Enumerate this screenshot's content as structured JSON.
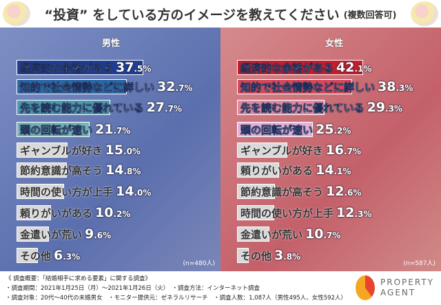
{
  "title": {
    "main": "“投資” をしている方のイメージを教えてください",
    "sub": "(複数回答可)"
  },
  "chart_data": [
    {
      "type": "bar",
      "title": "男性",
      "note": "(n=480人)",
      "categories": [
        "経済的な余裕がある",
        "知的で社会情勢などに詳しい",
        "先を読む能力に優れている",
        "頭の回転が速い",
        "ギャンブルが好き",
        "節約意識が高そう",
        "時間の使い方が上手",
        "頼りがいがある",
        "金遣いが荒い",
        "その他"
      ],
      "values": [
        37.5,
        32.7,
        27.7,
        21.7,
        15.0,
        14.8,
        14.0,
        10.2,
        9.6,
        6.3
      ],
      "colors": [
        "#1f3d96",
        "#2b68a6",
        "#4c98ae",
        "#74b6b6",
        "#d9d9d9",
        "#d9d9d9",
        "#d9d9d9",
        "#d9d9d9",
        "#d9d9d9",
        "#d9d9d9"
      ],
      "unit": "%"
    },
    {
      "type": "bar",
      "title": "女性",
      "note": "(n=587人)",
      "categories": [
        "経済的な余裕がある",
        "知的で社会情勢などに詳しい",
        "先を読む能力に優れている",
        "頭の回転が速い",
        "ギャンブルが好き",
        "頼りがいがある",
        "節約意識が高そう",
        "時間の使い方が上手",
        "金遣いが荒い",
        "その他"
      ],
      "values": [
        42.1,
        38.3,
        29.3,
        25.2,
        16.7,
        14.1,
        12.6,
        12.3,
        10.7,
        3.8
      ],
      "colors": [
        "#c41e2c",
        "#d44a5c",
        "#e38aa2",
        "#e6b2dc",
        "#d9d9d9",
        "#d9d9d9",
        "#d9d9d9",
        "#d9d9d9",
        "#d9d9d9",
        "#d9d9d9"
      ],
      "unit": "%"
    }
  ],
  "footer": {
    "line1": "《 調査概要：「結婚相手に求める要素」に関する調査》",
    "line2": "・調査期間：2021年1月25日（月）～2021年1月26日（火）　・調査方法：インターネット調査",
    "line3": "・調査対象：20代～40代の未婚男女　・モニター提供元：ゼネラルリサーチ　・調査人数：1,087人（男性495人、女性592人）"
  },
  "logo": {
    "line1": "PROPERTY",
    "line2": "AGENT"
  }
}
